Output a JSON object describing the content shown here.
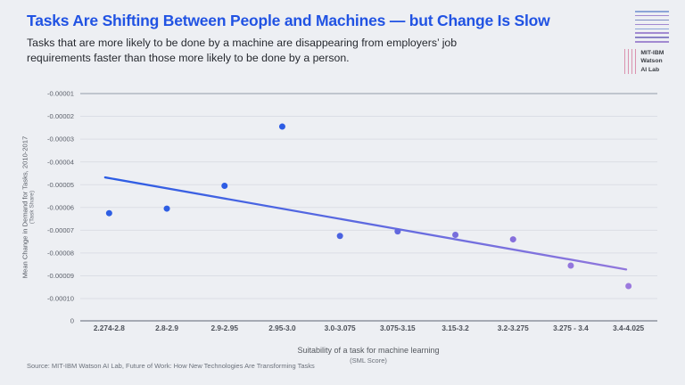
{
  "header": {
    "title": "Tasks Are Shifting Between People and Machines — but Change Is Slow",
    "subtitle": "Tasks that are more likely to be done by a machine are disappearing from employers’ job requirements faster than those more likely to be done by a person."
  },
  "logo": {
    "line1": "MIT-IBM",
    "line2": "Watson",
    "line3": "AI Lab"
  },
  "footer": {
    "source": "Source: MIT-IBM Watson AI Lab, Future of Work: How New Technologies Are Transforming Tasks"
  },
  "colors": {
    "background": "#edeff3",
    "title_blue": "#2153e3",
    "point_blue": "#2d5ce4",
    "point_purple": "#9b79de",
    "logo_pink": "#db92af",
    "gridline": "#dbdee5",
    "axis_line_top": "#b2b7c1",
    "axis_line_bottom": "#8e949e"
  },
  "chart_data": {
    "type": "scatter",
    "title": "Tasks Are Shifting Between People and Machines — but Change Is Slow",
    "categories": [
      "2.274-2.8",
      "2.8-2.9",
      "2.9-2.95",
      "2.95-3.0",
      "3.0-3.075",
      "3.075-3.15",
      "3.15-3.2",
      "3.2-3.275",
      "3.275 - 3.4",
      "3.4-4.025"
    ],
    "values": [
      -6.25e-05,
      -6.05e-05,
      -5.05e-05,
      -2.45e-05,
      -7.25e-05,
      -7.05e-05,
      -7.2e-05,
      -7.4e-05,
      -8.55e-05,
      -9.45e-05
    ],
    "point_colors": [
      "#2e5ee3",
      "#2e5ee3",
      "#2d5ce4",
      "#2d5ce4",
      "#4a62e0",
      "#6268de",
      "#776ddc",
      "#866fdc",
      "#9376dd",
      "#9b79de"
    ],
    "y_ticks": [
      "-0.00001",
      "-0.00002",
      "-0.00003",
      "-0.00004",
      "-0.00005",
      "-0.00006",
      "-0.00007",
      "-0.00008",
      "-0.00009",
      "-0.00010",
      "0"
    ],
    "trendline": {
      "start_x_frac": 0.043,
      "end_x_frac": 0.946,
      "start_value": -4.68e-05,
      "end_value": -8.72e-05,
      "color_start": "#2b5ce4",
      "color_end": "#9177dc"
    },
    "xlabel": "Suitability of a task for machine learning",
    "xlabel_sub": "(SML Score)",
    "ylabel": "Mean Change in Demand for Tasks, 2010-2017",
    "ylabel_sub": "(Task Share)",
    "ylim": [
      -0.0001,
      -1e-05
    ],
    "grid": true,
    "legend": false
  }
}
